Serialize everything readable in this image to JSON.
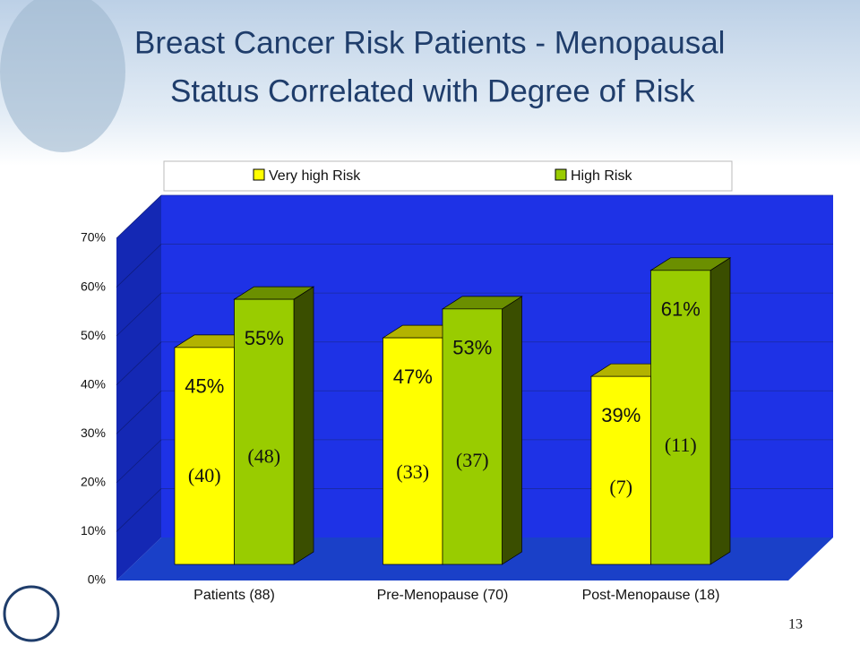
{
  "chart_data": {
    "type": "bar3d",
    "title": [
      "Breast Cancer Risk Patients - Menopausal",
      "Status Correlated with Degree of Risk"
    ],
    "categories": [
      "Patients  (88)",
      "Pre-Menopause  (70)",
      "Post-Menopause  (18)"
    ],
    "series": [
      {
        "name": "Very high Risk",
        "color": "#ffff00",
        "values": [
          45,
          47,
          39
        ],
        "value_labels": [
          "45%",
          "47%",
          "39%"
        ],
        "counts": [
          "(40)",
          "(33)",
          "(7)"
        ]
      },
      {
        "name": "High Risk",
        "color": "#99cc00",
        "values": [
          55,
          53,
          61
        ],
        "value_labels": [
          "55%",
          "53%",
          "61%"
        ],
        "counts": [
          "(48)",
          "(37)",
          "(11)"
        ]
      }
    ],
    "ylim": [
      0,
      70
    ],
    "yticks": [
      {
        "value": 0,
        "label": "0%"
      },
      {
        "value": 10,
        "label": "10%"
      },
      {
        "value": 20,
        "label": "20%"
      },
      {
        "value": 30,
        "label": "30%"
      },
      {
        "value": 40,
        "label": "40%"
      },
      {
        "value": 50,
        "label": "50%"
      },
      {
        "value": 60,
        "label": "60%"
      },
      {
        "value": 70,
        "label": "70%"
      }
    ],
    "grid": true,
    "page_number": "13"
  }
}
